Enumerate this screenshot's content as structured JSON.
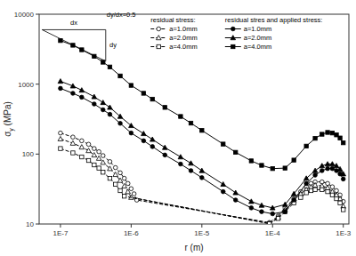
{
  "chart_data": {
    "type": "line",
    "xlabel": "r (m)",
    "ylabel": "σy (MPa)",
    "log": true,
    "grid": false,
    "legend": "top",
    "xlim": [
      5e-08,
      0.0012
    ],
    "ylim": [
      10,
      10000
    ],
    "xticks": [
      {
        "value": 1e-07,
        "label": "1E-7"
      },
      {
        "value": 1e-06,
        "label": "1E-6"
      },
      {
        "value": 1e-05,
        "label": "1E-5"
      },
      {
        "value": 0.0001,
        "label": "1E-4"
      },
      {
        "value": 0.001,
        "label": "1E-3"
      }
    ],
    "yticks": [
      10,
      100,
      1000,
      10000
    ],
    "annotations": [
      {
        "text": "dx",
        "x": 1.5501e-07,
        "y": 6900
      },
      {
        "text": "dy",
        "x": 4.8057e-07,
        "y": 3574.0
      },
      {
        "text": "dy/dx=0.5",
        "x": 4.3688e-07,
        "y": 9000
      },
      {
        "x": [
          5.5e-08,
          4.3688e-07,
          4.3688e-07,
          5.5e-08
        ],
        "y": [
          6000,
          6000,
          2128.9,
          6000
        ]
      }
    ],
    "series": [
      {
        "name": "a=1.0mm",
        "group": "residual stress:",
        "marker": "open-circle",
        "line_style": "dashed",
        "color": "#000000",
        "x": [
          1e-07,
          1.5e-07,
          2e-07,
          2.5e-07,
          3e-07,
          3.5e-07,
          4e-07,
          5e-07,
          6e-07,
          7e-07,
          8e-07,
          9e-07,
          1e-06,
          1.1e-06,
          1.2e-06,
          9e-05,
          0.00012,
          0.00015,
          0.0002,
          0.00025,
          0.0003,
          0.00035,
          0.0004,
          0.0005,
          0.0006,
          0.0007,
          0.0008,
          0.0009,
          0.001
        ],
        "values": [
          200,
          175,
          155,
          138,
          120,
          108,
          95,
          78,
          64,
          54,
          45,
          38,
          32,
          27,
          22,
          10.5,
          13,
          17,
          23,
          29,
          34,
          38,
          40,
          40,
          38,
          34,
          30,
          26,
          21
        ]
      },
      {
        "name": "a=2.0mm",
        "group": "residual stress:",
        "marker": "open-triangle",
        "line_style": "dashed",
        "color": "#000000",
        "x": [
          1e-07,
          1.5e-07,
          2e-07,
          2.5e-07,
          3e-07,
          3.5e-07,
          4e-07,
          5e-07,
          6e-07,
          7e-07,
          8e-07,
          9e-07,
          1e-06,
          9e-05,
          0.00012,
          0.00015,
          0.0002,
          0.00025,
          0.0003,
          0.00035,
          0.0004,
          0.0005,
          0.0006,
          0.0007,
          0.0008,
          0.0009,
          0.001
        ],
        "values": [
          165,
          143,
          126,
          112,
          97,
          87,
          76,
          62,
          51,
          42,
          35,
          29,
          24,
          10.2,
          12.5,
          16,
          22,
          27,
          31,
          34,
          36,
          35,
          33,
          29,
          26,
          23,
          18
        ]
      },
      {
        "name": "a=4.0mm",
        "group": "residual stress:",
        "marker": "open-square",
        "line_style": "dashed",
        "color": "#000000",
        "x": [
          1e-07,
          1.5e-07,
          2e-07,
          2.5e-07,
          3e-07,
          3.5e-07,
          4e-07,
          5e-07,
          6e-07,
          7e-07,
          8e-07,
          9e-05,
          0.00012,
          0.00015,
          0.0002,
          0.00025,
          0.0003,
          0.00035,
          0.0004,
          0.0005,
          0.0006,
          0.0007,
          0.0008,
          0.0009,
          0.001
        ],
        "values": [
          120,
          104,
          91,
          81,
          70,
          63,
          55,
          45,
          37,
          30,
          25,
          10.1,
          12,
          15,
          20,
          24,
          28,
          30,
          31,
          31,
          29,
          26,
          23,
          20,
          16
        ]
      },
      {
        "name": "a=1.0mm",
        "group": "residual stres and applied stress:",
        "marker": "circle",
        "line_style": "solid",
        "color": "#000000",
        "x": [
          1e-07,
          1.5e-07,
          2e-07,
          3e-07,
          4e-07,
          5e-07,
          7e-07,
          1e-06,
          1.5e-06,
          2e-06,
          3e-06,
          5e-06,
          7e-06,
          1e-05,
          2e-05,
          3e-05,
          5e-05,
          7e-05,
          0.0001,
          0.00015,
          0.0002,
          0.0003,
          0.0004,
          0.0005,
          0.0006,
          0.0007,
          0.0008,
          0.0009,
          0.001
        ],
        "values": [
          870,
          740,
          650,
          520,
          430,
          370,
          275,
          200,
          155,
          128,
          97,
          72,
          58,
          46,
          29,
          22,
          17,
          15,
          14,
          15,
          22,
          38,
          50,
          58,
          62,
          62,
          58,
          52,
          44
        ]
      },
      {
        "name": "a=2.0mm",
        "group": "residual stres and applied stress:",
        "marker": "triangle",
        "line_style": "solid",
        "color": "#000000",
        "x": [
          1e-07,
          1.5e-07,
          2e-07,
          3e-07,
          4e-07,
          5e-07,
          7e-07,
          1e-06,
          1.5e-06,
          2e-06,
          3e-06,
          5e-06,
          7e-06,
          1e-05,
          2e-05,
          3e-05,
          5e-05,
          7e-05,
          0.0001,
          0.00015,
          0.0002,
          0.0003,
          0.0004,
          0.0005,
          0.0006,
          0.0007,
          0.0008,
          0.0009,
          0.001
        ],
        "values": [
          1100,
          940,
          820,
          660,
          545,
          465,
          345,
          255,
          196,
          162,
          124,
          91,
          74,
          58,
          37,
          28,
          21,
          18.5,
          17,
          19,
          27,
          45,
          58,
          68,
          72,
          72,
          68,
          61,
          52
        ]
      },
      {
        "name": "a=4.0mm",
        "group": "residual stres and applied stress:",
        "marker": "square",
        "line_style": "solid",
        "color": "#000000",
        "x": [
          1e-07,
          1.5e-07,
          2e-07,
          3e-07,
          4e-07,
          5e-07,
          7e-07,
          1e-06,
          1.5e-06,
          2e-06,
          3e-06,
          5e-06,
          7e-06,
          1e-05,
          2e-05,
          3e-05,
          5e-05,
          7e-05,
          0.0001,
          0.00015,
          0.0002,
          0.0003,
          0.0004,
          0.0005,
          0.0006,
          0.0007,
          0.0008,
          0.0009,
          0.001
        ],
        "values": [
          4200,
          3600,
          3100,
          2500,
          2060,
          1760,
          1310,
          960,
          740,
          610,
          465,
          345,
          277,
          218,
          139,
          106,
          80,
          69,
          62,
          63,
          82,
          130,
          168,
          192,
          204,
          200,
          188,
          170,
          145
        ]
      }
    ]
  }
}
